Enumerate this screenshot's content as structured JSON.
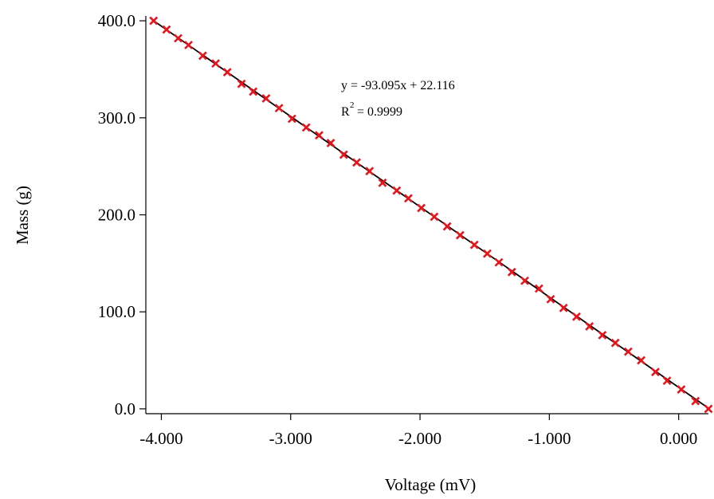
{
  "chart_data": {
    "type": "scatter",
    "xlabel": "Voltage (mV)",
    "ylabel": "Mass (g)",
    "xlim": [
      -4.12,
      0.23
    ],
    "ylim": [
      -5,
      405
    ],
    "x_ticks": [
      -4.0,
      -3.0,
      -2.0,
      -1.0,
      0.0
    ],
    "x_tick_labels": [
      "-4.000",
      "-3.000",
      "-2.000",
      "-1.000",
      "0.000"
    ],
    "y_ticks": [
      0,
      100,
      200,
      300,
      400
    ],
    "y_tick_labels": [
      "0.0",
      "100.0",
      "200.0",
      "300.0",
      "400.0"
    ],
    "grid": false,
    "marker_color": "#e8141c",
    "line_color": "#000000",
    "fit": {
      "slope": -93.095,
      "intercept": 22.116,
      "equation_main": "y = -93.095x + 22.116",
      "r2_symbol": "R",
      "r2_exponent": "2",
      "r2_value": "= 0.9999"
    },
    "series": [
      {
        "x": [
          -4.06,
          -3.96,
          -3.87,
          -3.79,
          -3.68,
          -3.58,
          -3.49,
          -3.38,
          -3.29,
          -3.19,
          -3.09,
          -2.99,
          -2.88,
          -2.78,
          -2.69,
          -2.59,
          -2.49,
          -2.39,
          -2.29,
          -2.18,
          -2.09,
          -1.99,
          -1.89,
          -1.79,
          -1.69,
          -1.58,
          -1.48,
          -1.39,
          -1.29,
          -1.19,
          -1.08,
          -0.99,
          -0.89,
          -0.79,
          -0.69,
          -0.59,
          -0.49,
          -0.39,
          -0.29,
          -0.18,
          -0.09,
          0.02,
          0.13,
          0.23
        ],
        "y": [
          400,
          391,
          382,
          375,
          364,
          356,
          347,
          335,
          327,
          320,
          310,
          299,
          290,
          282,
          274,
          262,
          254,
          245,
          233,
          225,
          217,
          207,
          198,
          188,
          179,
          169,
          160,
          151,
          141,
          132,
          124,
          113,
          104,
          95,
          85,
          76,
          68,
          59,
          50,
          38,
          29,
          20,
          8,
          0
        ]
      }
    ]
  }
}
